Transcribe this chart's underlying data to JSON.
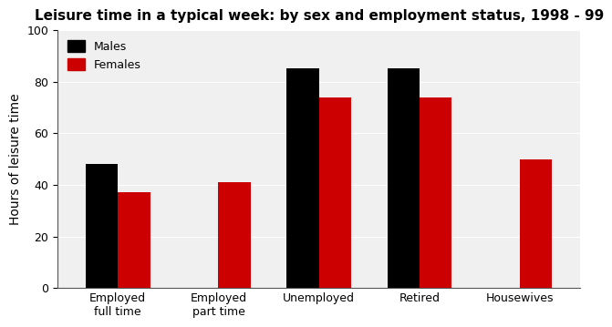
{
  "title": "Leisure time in a typical week: by sex and employment status, 1998 - 99",
  "ylabel": "Hours of leisure time",
  "categories": [
    "Employed\nfull time",
    "Employed\npart time",
    "Unemployed",
    "Retired",
    "Housewives"
  ],
  "males": [
    48,
    0,
    85,
    85,
    0
  ],
  "females": [
    37,
    41,
    74,
    74,
    50
  ],
  "male_color": "#000000",
  "female_color": "#cc0000",
  "ylim": [
    0,
    100
  ],
  "yticks": [
    0,
    20,
    40,
    60,
    80,
    100
  ],
  "legend_labels": [
    "Males",
    "Females"
  ],
  "bar_width": 0.32,
  "title_fontsize": 11,
  "axis_fontsize": 10,
  "tick_fontsize": 9,
  "legend_fontsize": 9,
  "background_color": "#ffffff",
  "plot_bg_color": "#f0f0f0"
}
